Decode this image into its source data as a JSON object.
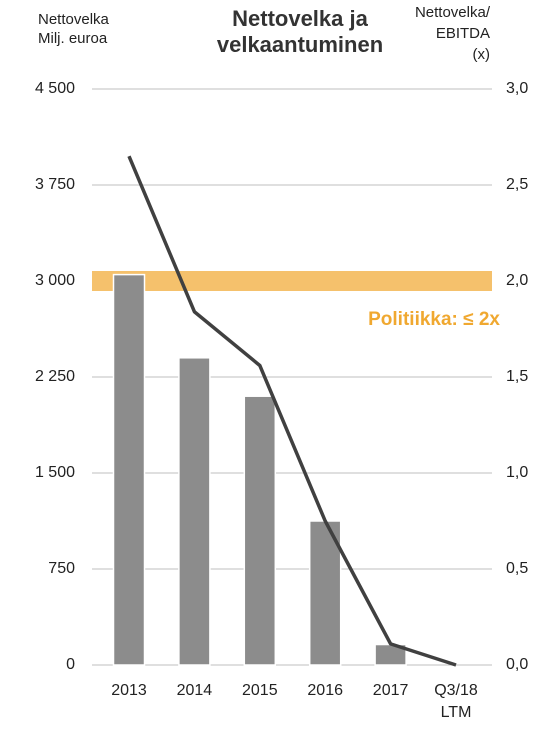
{
  "chart_data": {
    "type": "bar_line",
    "title_lines": [
      "Nettovelka ja",
      "velkaantuminen"
    ],
    "y_label_lines": [
      "Nettovelka",
      "Milj. euroa"
    ],
    "y2_label_lines": [
      "Nettovelka/",
      "EBITDA",
      "(x)"
    ],
    "categories": [
      "2013",
      "2014",
      "2015",
      "2016",
      "2017",
      "Q3/18 LTM"
    ],
    "series": [
      {
        "name": "Nettovelka",
        "type": "bar",
        "color": "#8c8c8c",
        "values": [
          3050,
          2400,
          2100,
          1125,
          160,
          null
        ]
      },
      {
        "name": "Nettovelka/EBITDA",
        "type": "line",
        "axis": "y2",
        "color": "#404040",
        "values": [
          2.65,
          1.84,
          1.56,
          0.75,
          0.11,
          0.0
        ]
      }
    ],
    "ylim": [
      0,
      4500
    ],
    "yticks": [
      0,
      750,
      {
        "value": 1500,
        "label": "1 500"
      },
      {
        "value": 2250,
        "label": "2 250"
      },
      {
        "value": 3000,
        "label": "3 000"
      },
      {
        "value": 3750,
        "label": "3 750"
      },
      {
        "value": 4500,
        "label": "4 500"
      }
    ],
    "y2lim": [
      0,
      3
    ],
    "y2ticks": [
      {
        "value": 0,
        "label": "0,0"
      },
      {
        "value": 0.5,
        "label": "0,5"
      },
      {
        "value": 1,
        "label": "1,0"
      },
      {
        "value": 1.5,
        "label": "1,5"
      },
      {
        "value": 2,
        "label": "2,0"
      },
      {
        "value": 2.5,
        "label": "2,5"
      },
      {
        "value": 3,
        "label": "3,0"
      }
    ],
    "policy": {
      "label": "Politiikka: ≤ 2x",
      "value": 2,
      "color": "#f5c16c",
      "text_color": "#f0a830"
    },
    "grid": true
  }
}
